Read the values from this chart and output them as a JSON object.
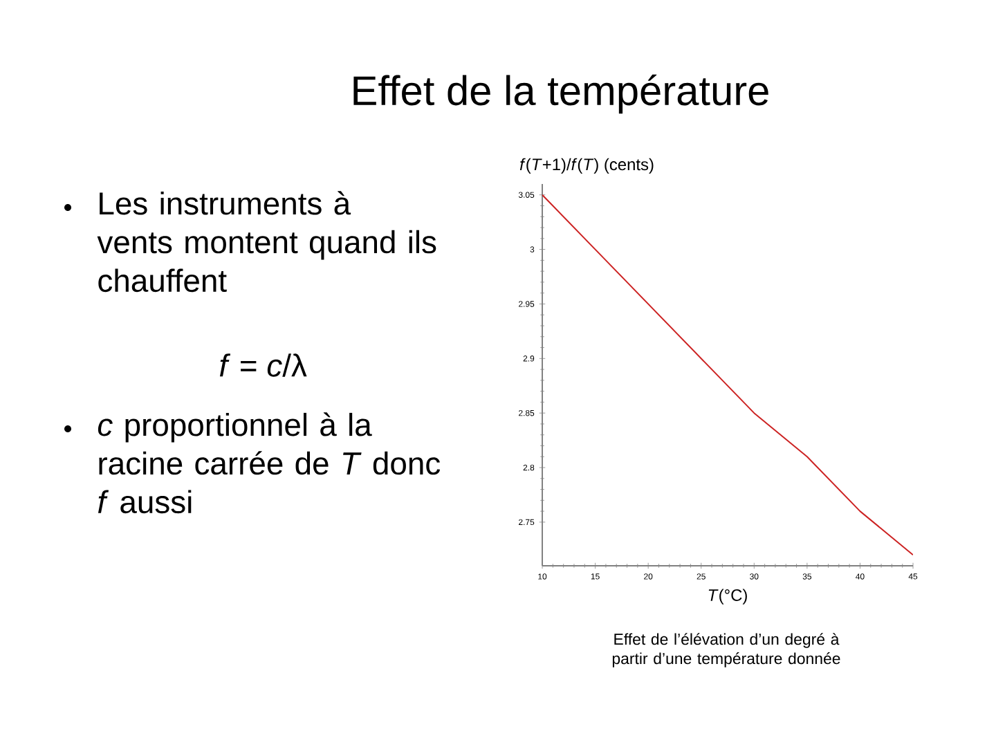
{
  "chart_data": {
    "type": "line",
    "title": "Effet de la température",
    "xlabel": "*T*(°C)",
    "ylabel": "*f*(*T*+1)/*f*(*T*) (cents)",
    "annotations": [
      "Les instruments à vents montent quand ils chauffent",
      "*f* = *c*/λ",
      "*c* proportionnel à la racine carrée de *T* donc *f* aussi",
      "Effet de l’élévation d’un degré à partir d’une température donnée"
    ],
    "x": [
      10,
      15,
      20,
      25,
      30,
      35,
      40,
      45
    ],
    "series": [
      {
        "color": "#cc2222",
        "values": [
          3.05,
          3.0,
          2.95,
          2.9,
          2.85,
          2.81,
          2.76,
          2.72
        ]
      }
    ],
    "xlim": [
      10,
      45
    ],
    "xticks": [
      10,
      15,
      20,
      25,
      30,
      35,
      40,
      45
    ],
    "ylim": [
      2.71,
      3.06
    ],
    "yticks": [
      2.75,
      2.8,
      2.85,
      2.9,
      2.95,
      3,
      3.05
    ],
    "grid": false,
    "marker": "none",
    "line_style": "solid"
  }
}
